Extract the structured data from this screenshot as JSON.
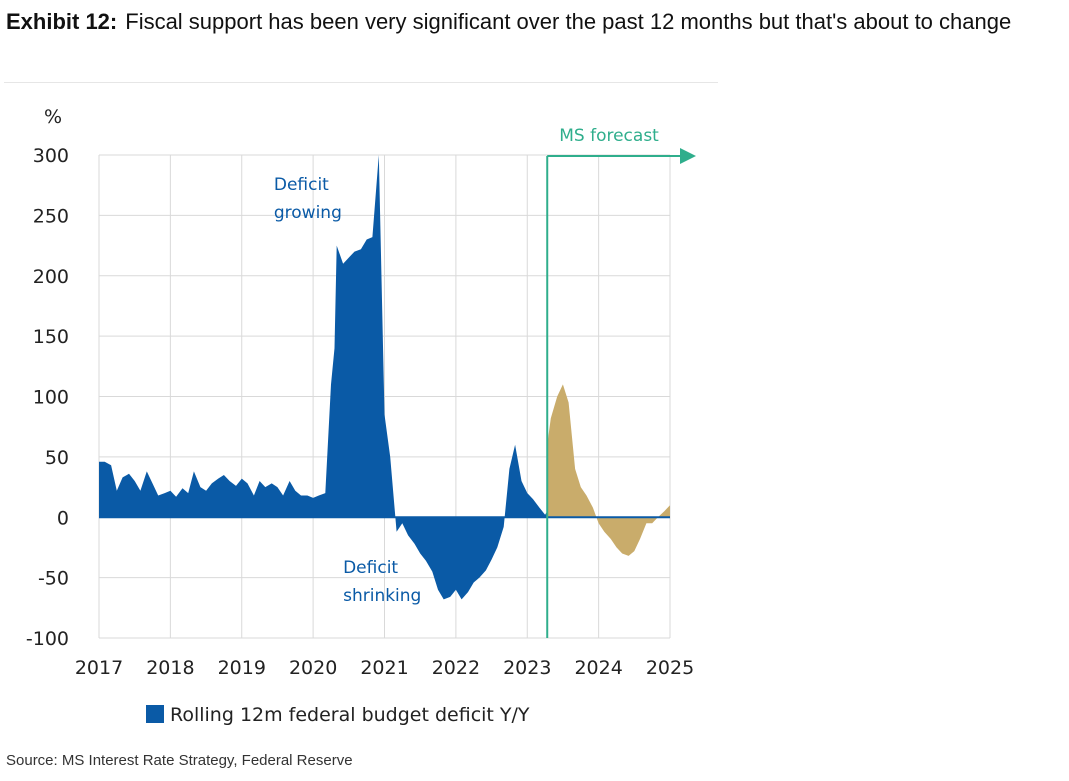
{
  "header": {
    "label": "Exhibit 12:",
    "title": "Fiscal support has been very significant over the past 12 months but that's about to change"
  },
  "source": "Source: MS Interest Rate Strategy, Federal Reserve",
  "colors": {
    "actual": "#0a5aa6",
    "forecast": "#c9ac6b",
    "forecast_marker": "#2fae8c",
    "grid": "#d9d9d9"
  },
  "chart_data": {
    "type": "area",
    "title": "",
    "xlabel": "",
    "ylabel": "%",
    "xlim": [
      2017,
      2025
    ],
    "ylim": [
      -100,
      300
    ],
    "x_ticks": [
      "2017",
      "2018",
      "2019",
      "2020",
      "2021",
      "2022",
      "2023",
      "2024",
      "2025"
    ],
    "y_ticks": [
      "300",
      "250",
      "200",
      "150",
      "100",
      "50",
      "0",
      "-50",
      "-100"
    ],
    "grid": true,
    "legend_position": "bottom",
    "forecast_start": 2023.28,
    "forecast_label": "MS forecast",
    "annotations": [
      {
        "lines": [
          "Deficit",
          "growing"
        ]
      },
      {
        "lines": [
          "Deficit",
          "shrinking"
        ]
      }
    ],
    "series": [
      {
        "name": "Rolling 12m federal budget deficit Y/Y",
        "x": [
          2017.0,
          2017.08,
          2017.17,
          2017.25,
          2017.33,
          2017.42,
          2017.5,
          2017.58,
          2017.67,
          2017.75,
          2017.83,
          2017.92,
          2018.0,
          2018.08,
          2018.17,
          2018.25,
          2018.33,
          2018.42,
          2018.5,
          2018.58,
          2018.67,
          2018.75,
          2018.83,
          2018.92,
          2019.0,
          2019.08,
          2019.17,
          2019.25,
          2019.33,
          2019.42,
          2019.5,
          2019.58,
          2019.67,
          2019.75,
          2019.83,
          2019.92,
          2020.0,
          2020.08,
          2020.17,
          2020.25,
          2020.3,
          2020.33,
          2020.42,
          2020.5,
          2020.58,
          2020.67,
          2020.75,
          2020.83,
          2020.92,
          2021.0,
          2021.08,
          2021.17,
          2021.25,
          2021.33,
          2021.42,
          2021.5,
          2021.58,
          2021.67,
          2021.75,
          2021.83,
          2021.92,
          2022.0,
          2022.08,
          2022.17,
          2022.25,
          2022.33,
          2022.42,
          2022.5,
          2022.58,
          2022.67,
          2022.75,
          2022.83,
          2022.92,
          2023.0,
          2023.08,
          2023.17,
          2023.25,
          2023.28
        ],
        "values": [
          46,
          46,
          43,
          22,
          33,
          36,
          30,
          22,
          38,
          28,
          18,
          20,
          22,
          17,
          24,
          20,
          38,
          25,
          22,
          28,
          32,
          35,
          30,
          26,
          32,
          28,
          18,
          30,
          25,
          28,
          25,
          18,
          30,
          22,
          18,
          18,
          16,
          18,
          20,
          110,
          140,
          225,
          210,
          215,
          220,
          222,
          230,
          232,
          300,
          85,
          50,
          -12,
          -5,
          -15,
          -22,
          -30,
          -36,
          -45,
          -60,
          -68,
          -66,
          -60,
          -68,
          -62,
          -54,
          -50,
          -44,
          -35,
          -25,
          -8,
          40,
          60,
          30,
          20,
          15,
          8,
          2,
          5
        ]
      },
      {
        "name": "MS forecast",
        "x": [
          2023.28,
          2023.33,
          2023.42,
          2023.5,
          2023.58,
          2023.67,
          2023.75,
          2023.83,
          2023.92,
          2024.0,
          2024.08,
          2024.17,
          2024.25,
          2024.33,
          2024.42,
          2024.5,
          2024.58,
          2024.67,
          2024.75,
          2024.83,
          2024.92,
          2025.0
        ],
        "values": [
          60,
          82,
          100,
          110,
          95,
          40,
          25,
          18,
          8,
          -5,
          -12,
          -18,
          -25,
          -30,
          -32,
          -28,
          -18,
          -5,
          -5,
          0,
          5,
          10
        ]
      }
    ]
  }
}
